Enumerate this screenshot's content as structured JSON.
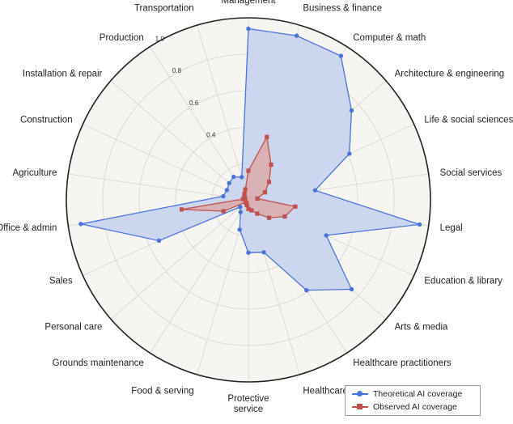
{
  "chart_data": {
    "type": "radar",
    "title": "",
    "categories": [
      "Management",
      "Business & finance",
      "Computer & math",
      "Architecture & engineering",
      "Life & social sciences",
      "Social services",
      "Legal",
      "Education & library",
      "Arts & media",
      "Healthcare practitioners",
      "Healthcare support",
      "Protective\nservice",
      "Food & serving",
      "Grounds maintenance",
      "Personal care",
      "Sales",
      "Office & admin",
      "Agriculture",
      "Construction",
      "Installation & repair",
      "Production",
      "Transportation"
    ],
    "radial_ticks": [
      "0.4",
      "0.6",
      "0.8",
      "1.0"
    ],
    "rlim": [
      0,
      1
    ],
    "grid": true,
    "series": [
      {
        "name": "Theoretical AI coverage",
        "color": "#4a73d9",
        "fill": "#c9d4ee",
        "marker": "circle",
        "values": [
          0.94,
          0.94,
          0.94,
          0.75,
          0.61,
          0.37,
          0.95,
          0.47,
          0.75,
          0.59,
          0.3,
          0.29,
          0.17,
          0.08,
          0.06,
          0.54,
          0.93,
          0.14,
          0.13,
          0.14,
          0.15,
          0.13
        ]
      },
      {
        "name": "Observed AI coverage",
        "color": "#c0504d",
        "fill": "#dcaaaa",
        "marker": "square",
        "values": [
          0.16,
          0.36,
          0.23,
          0.15,
          0.1,
          0.05,
          0.26,
          0.22,
          0.15,
          0.09,
          0.06,
          0.05,
          0.03,
          0.02,
          0.02,
          0.15,
          0.37,
          0.03,
          0.02,
          0.03,
          0.04,
          0.06
        ]
      }
    ],
    "legend": {
      "placement": "bottom-right",
      "entries": [
        "Theoretical AI coverage",
        "Observed AI coverage"
      ]
    }
  }
}
